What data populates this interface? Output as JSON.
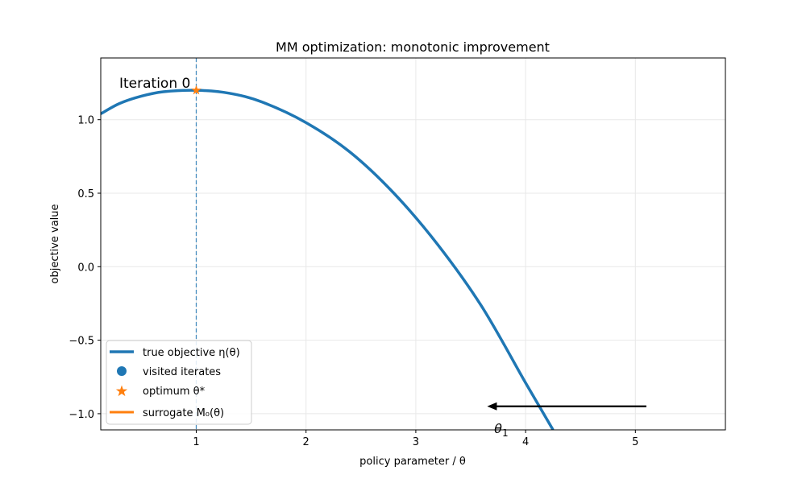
{
  "chart_data": {
    "type": "line",
    "title": "MM optimization: monotonic improvement",
    "xlabel": "policy parameter / θ",
    "ylabel": "objective value",
    "xlim": [
      0.13,
      5.82
    ],
    "ylim": [
      -1.11,
      1.42
    ],
    "grid": true,
    "x_ticks": [
      1,
      2,
      3,
      4,
      5
    ],
    "y_ticks": [
      -1.0,
      -0.5,
      0.0,
      0.5,
      1.0
    ],
    "x_tick_labels": [
      "1",
      "2",
      "3",
      "4",
      "5"
    ],
    "y_tick_labels": [
      "−1.0",
      "−0.5",
      "0.0",
      "0.5",
      "1.0"
    ],
    "series": [
      {
        "name": "true objective η(θ)",
        "color": "#1f77b4",
        "x": [
          0.13,
          0.3,
          0.5,
          0.7,
          1.0,
          1.3,
          1.6,
          2.0,
          2.4,
          2.8,
          3.2,
          3.6,
          4.0,
          4.25
        ],
        "y": [
          1.04,
          1.11,
          1.16,
          1.19,
          1.2,
          1.18,
          1.12,
          0.98,
          0.78,
          0.5,
          0.15,
          -0.27,
          -0.79,
          -1.11
        ]
      }
    ],
    "visited_iterates": {
      "name": "visited iterates",
      "color": "#1f77b4",
      "points": []
    },
    "optimum": {
      "name": "optimum θ*",
      "color": "#ff7f0e",
      "x": 1.0,
      "y": 1.2
    },
    "surrogate": {
      "name": "surrogate M₀(θ)",
      "color": "#ff7f0e",
      "x": [],
      "y": []
    },
    "vline": {
      "x": 1.0,
      "color": "#1f77b4",
      "style": "dashed"
    },
    "annotations": {
      "iteration_label": "Iteration 0",
      "arrow": {
        "from": [
          5.1,
          -0.95
        ],
        "to": [
          3.65,
          -0.95
        ]
      },
      "theta_label": "θ",
      "theta_subscript": "1",
      "theta_label_pos": [
        3.78,
        -1.11
      ]
    },
    "legend_location": "lower-left",
    "legend": [
      "true objective η(θ)",
      "visited iterates",
      "optimum θ*",
      "surrogate M₀(θ)"
    ]
  }
}
